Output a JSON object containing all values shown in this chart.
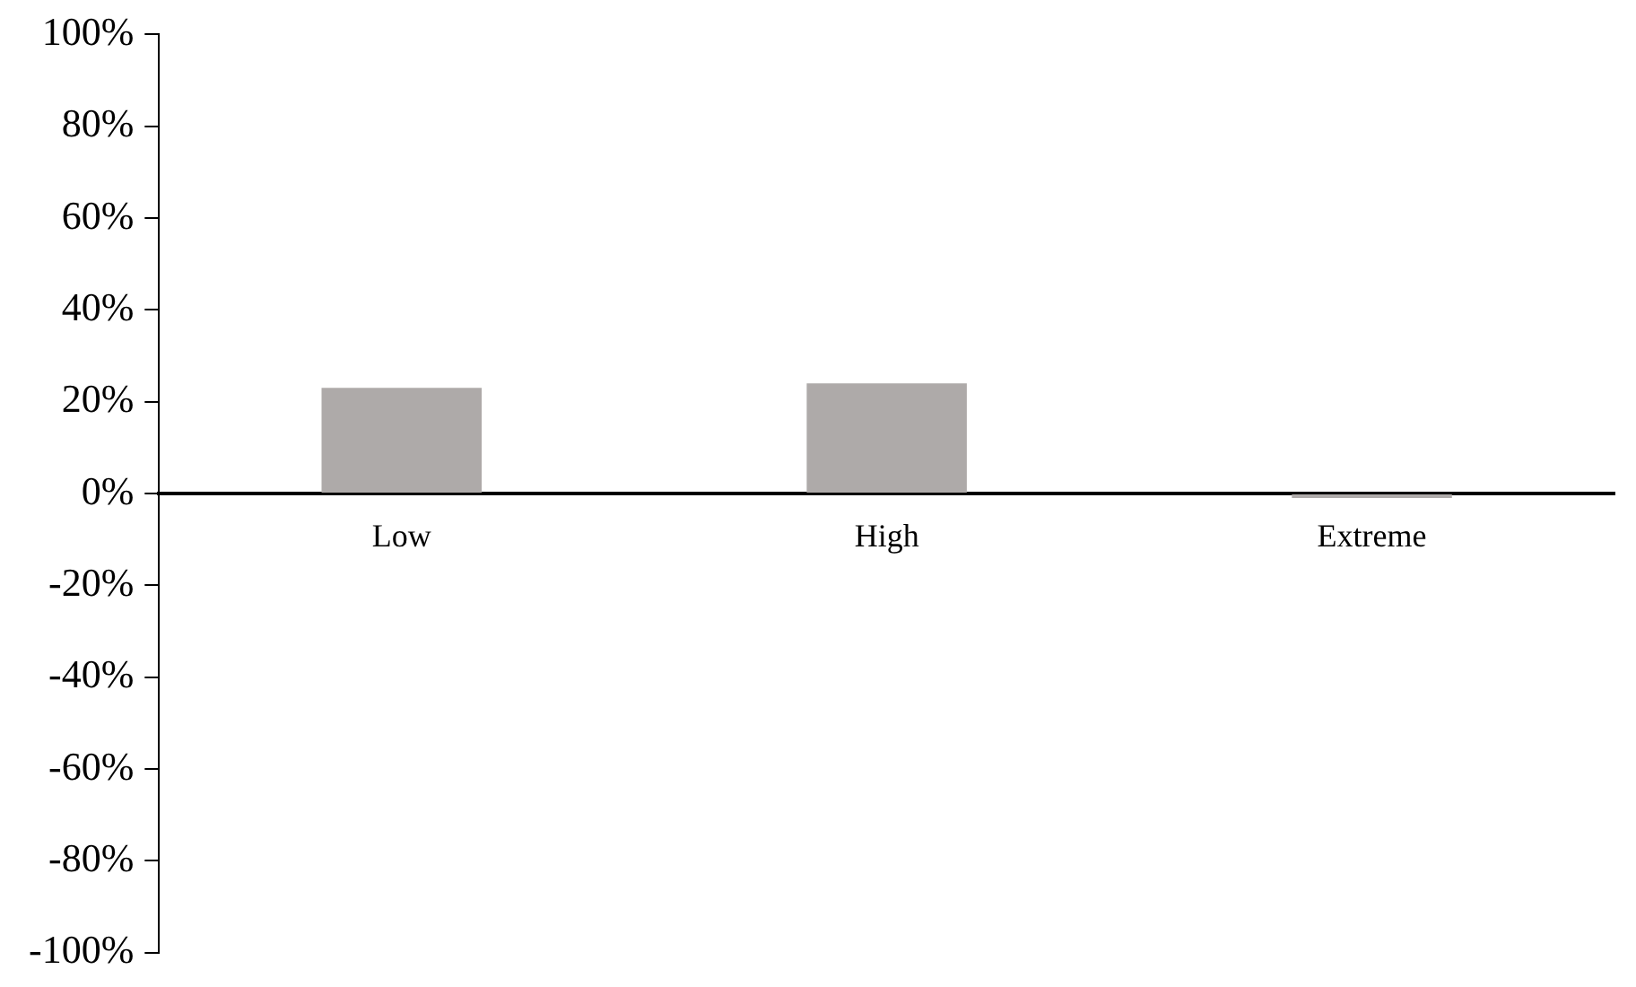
{
  "chart_data": {
    "type": "bar",
    "categories": [
      "Low",
      "High",
      "Extreme"
    ],
    "values": [
      23,
      24,
      -1
    ],
    "color": "#aeaaa9",
    "ylim": [
      -100,
      100
    ],
    "yticks": [
      {
        "value": -100,
        "label": "-100%"
      },
      {
        "value": -80,
        "label": "-80%"
      },
      {
        "value": -60,
        "label": "-60%"
      },
      {
        "value": -40,
        "label": "-40%"
      },
      {
        "value": -20,
        "label": "-20%"
      },
      {
        "value": 0,
        "label": "0%"
      },
      {
        "value": 20,
        "label": "20%"
      },
      {
        "value": 40,
        "label": "40%"
      },
      {
        "value": 60,
        "label": "60%"
      },
      {
        "value": 80,
        "label": "80%"
      },
      {
        "value": 100,
        "label": "100%"
      }
    ],
    "grid": false,
    "legend": false
  }
}
